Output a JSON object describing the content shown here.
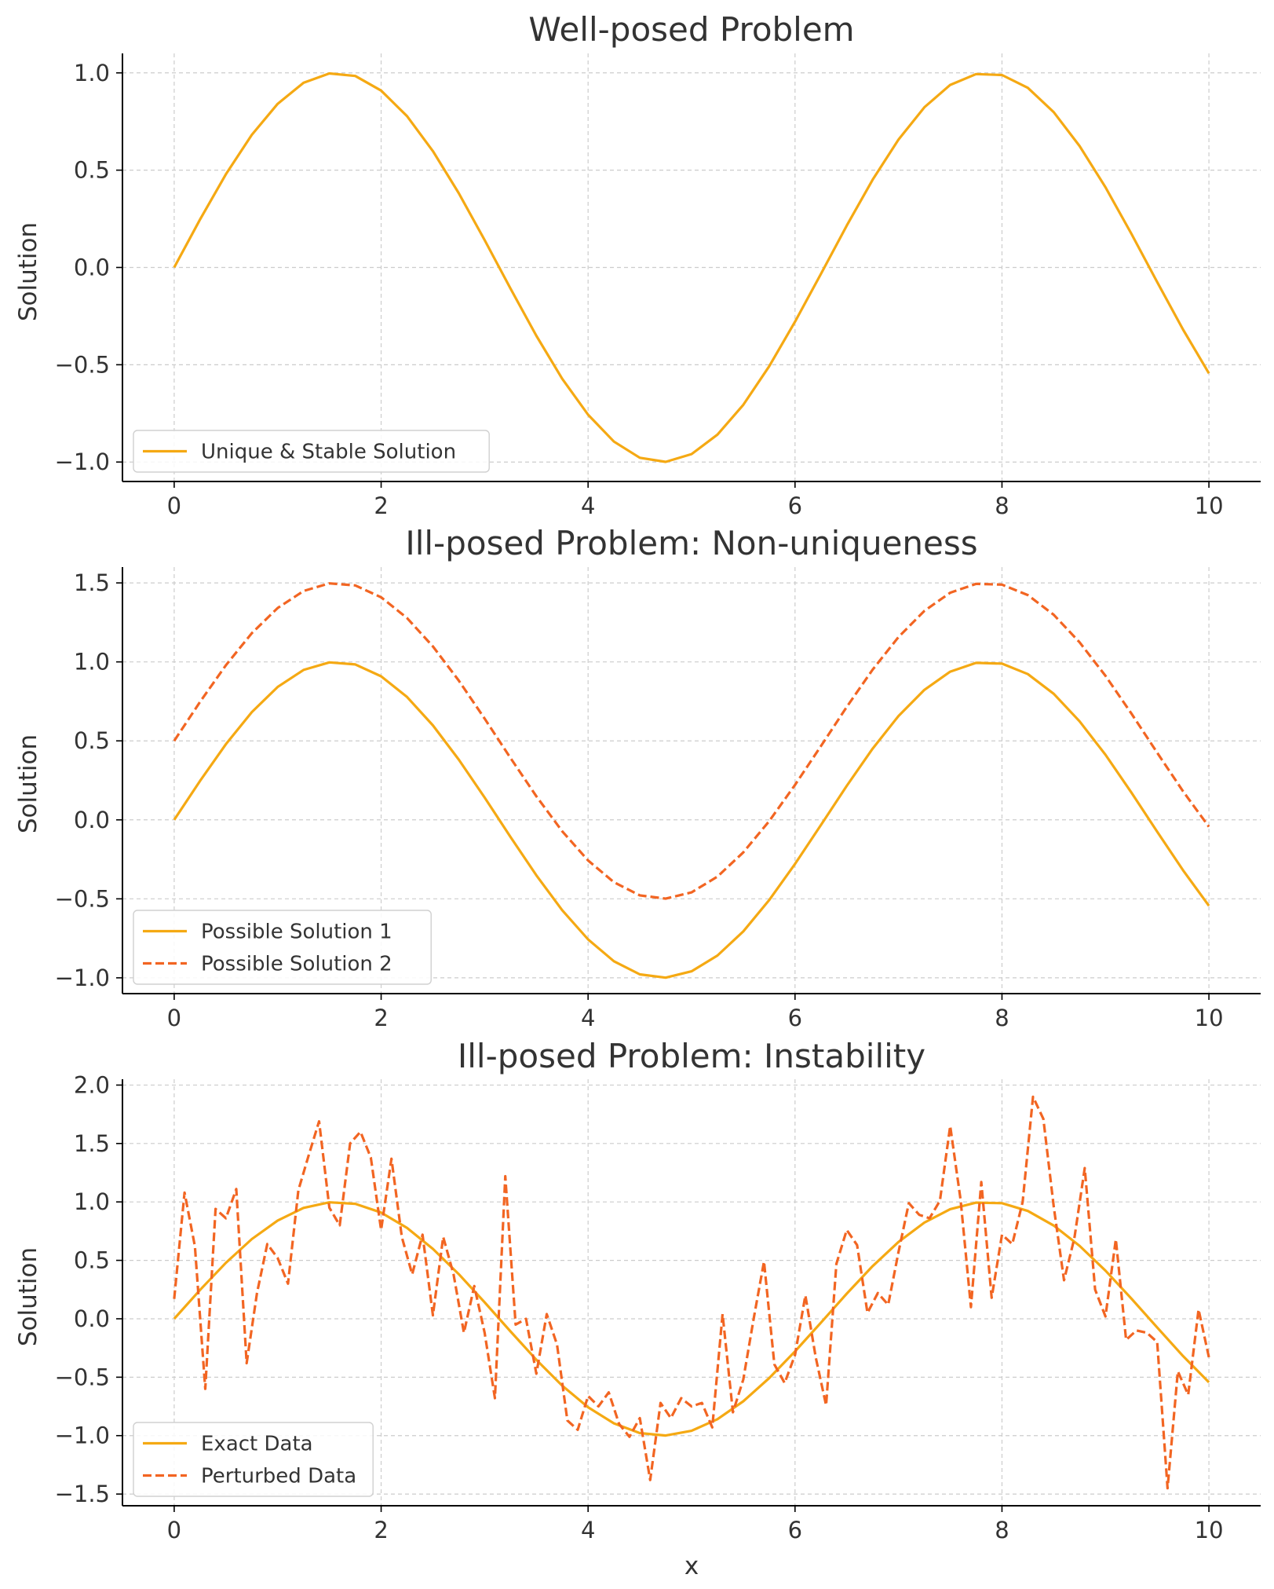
{
  "chart_data": [
    {
      "type": "line",
      "title": "Well-posed Problem",
      "xlabel": "",
      "ylabel": "Solution",
      "xlim": [
        -0.5,
        10.5
      ],
      "ylim": [
        -1.1,
        1.1
      ],
      "xticks": [
        0,
        2,
        4,
        6,
        8,
        10
      ],
      "xtick_labels": [
        "0",
        "2",
        "4",
        "6",
        "8",
        "10"
      ],
      "yticks": [
        1.0,
        0.5,
        0.0,
        -0.5,
        -1.0
      ],
      "ytick_labels": [
        "1.0",
        "0.5",
        "0.0",
        "−0.5",
        "−1.0"
      ],
      "grid": true,
      "legend_position": "lower-left",
      "series": [
        {
          "name": "Unique & Stable Solution",
          "color": "#f5a913",
          "style": "solid",
          "x": [
            0,
            0.25,
            0.5,
            0.75,
            1,
            1.25,
            1.5,
            1.75,
            2,
            2.25,
            2.5,
            2.75,
            3,
            3.25,
            3.5,
            3.75,
            4,
            4.25,
            4.5,
            4.75,
            5,
            5.25,
            5.5,
            5.75,
            6,
            6.25,
            6.5,
            6.75,
            7,
            7.25,
            7.5,
            7.75,
            8,
            8.25,
            8.5,
            8.75,
            9,
            9.25,
            9.5,
            9.75,
            10
          ],
          "y": [
            0,
            0.247,
            0.479,
            0.682,
            0.841,
            0.949,
            0.997,
            0.984,
            0.909,
            0.778,
            0.598,
            0.382,
            0.141,
            -0.108,
            -0.351,
            -0.572,
            -0.757,
            -0.895,
            -0.978,
            -0.999,
            -0.959,
            -0.859,
            -0.706,
            -0.508,
            -0.279,
            -0.033,
            0.215,
            0.451,
            0.657,
            0.823,
            0.938,
            0.994,
            0.989,
            0.923,
            0.798,
            0.624,
            0.412,
            0.174,
            -0.075,
            -0.319,
            -0.544
          ]
        }
      ]
    },
    {
      "type": "line",
      "title": "Ill-posed Problem: Non-uniqueness",
      "xlabel": "",
      "ylabel": "Solution",
      "xlim": [
        -0.5,
        10.5
      ],
      "ylim": [
        -1.1,
        1.6
      ],
      "xticks": [
        0,
        2,
        4,
        6,
        8,
        10
      ],
      "xtick_labels": [
        "0",
        "2",
        "4",
        "6",
        "8",
        "10"
      ],
      "yticks": [
        1.5,
        1.0,
        0.5,
        0.0,
        -0.5,
        -1.0
      ],
      "ytick_labels": [
        "1.5",
        "1.0",
        "0.5",
        "0.0",
        "−0.5",
        "−1.0"
      ],
      "grid": true,
      "legend_position": "lower-left",
      "series": [
        {
          "name": "Possible Solution 1",
          "color": "#f5a913",
          "style": "solid",
          "x": [
            0,
            0.25,
            0.5,
            0.75,
            1,
            1.25,
            1.5,
            1.75,
            2,
            2.25,
            2.5,
            2.75,
            3,
            3.25,
            3.5,
            3.75,
            4,
            4.25,
            4.5,
            4.75,
            5,
            5.25,
            5.5,
            5.75,
            6,
            6.25,
            6.5,
            6.75,
            7,
            7.25,
            7.5,
            7.75,
            8,
            8.25,
            8.5,
            8.75,
            9,
            9.25,
            9.5,
            9.75,
            10
          ],
          "y": [
            0,
            0.247,
            0.479,
            0.682,
            0.841,
            0.949,
            0.997,
            0.984,
            0.909,
            0.778,
            0.598,
            0.382,
            0.141,
            -0.108,
            -0.351,
            -0.572,
            -0.757,
            -0.895,
            -0.978,
            -0.999,
            -0.959,
            -0.859,
            -0.706,
            -0.508,
            -0.279,
            -0.033,
            0.215,
            0.451,
            0.657,
            0.823,
            0.938,
            0.994,
            0.989,
            0.923,
            0.798,
            0.624,
            0.412,
            0.174,
            -0.075,
            -0.319,
            -0.544
          ]
        },
        {
          "name": "Possible Solution 2",
          "color": "#f26522",
          "style": "dashed",
          "x": [
            0,
            0.25,
            0.5,
            0.75,
            1,
            1.25,
            1.5,
            1.75,
            2,
            2.25,
            2.5,
            2.75,
            3,
            3.25,
            3.5,
            3.75,
            4,
            4.25,
            4.5,
            4.75,
            5,
            5.25,
            5.5,
            5.75,
            6,
            6.25,
            6.5,
            6.75,
            7,
            7.25,
            7.5,
            7.75,
            8,
            8.25,
            8.5,
            8.75,
            9,
            9.25,
            9.5,
            9.75,
            10
          ],
          "y": [
            0.5,
            0.747,
            0.979,
            1.182,
            1.341,
            1.449,
            1.497,
            1.484,
            1.409,
            1.278,
            1.098,
            0.882,
            0.641,
            0.392,
            0.149,
            -0.072,
            -0.257,
            -0.395,
            -0.478,
            -0.499,
            -0.459,
            -0.359,
            -0.206,
            -0.008,
            0.221,
            0.467,
            0.715,
            0.951,
            1.157,
            1.323,
            1.438,
            1.494,
            1.489,
            1.423,
            1.298,
            1.124,
            0.912,
            0.674,
            0.425,
            0.181,
            -0.044
          ]
        }
      ]
    },
    {
      "type": "line",
      "title": "Ill-posed Problem: Instability",
      "xlabel": "x",
      "ylabel": "Solution",
      "xlim": [
        -0.5,
        10.5
      ],
      "ylim": [
        -1.6,
        2.05
      ],
      "xticks": [
        0,
        2,
        4,
        6,
        8,
        10
      ],
      "xtick_labels": [
        "0",
        "2",
        "4",
        "6",
        "8",
        "10"
      ],
      "yticks": [
        2.0,
        1.5,
        1.0,
        0.5,
        0.0,
        -0.5,
        -1.0,
        -1.5
      ],
      "ytick_labels": [
        "2.0",
        "1.5",
        "1.0",
        "0.5",
        "0.0",
        "−0.5",
        "−1.0",
        "−1.5"
      ],
      "grid": true,
      "legend_position": "lower-left",
      "series": [
        {
          "name": "Exact Data",
          "color": "#f5a913",
          "style": "solid",
          "x": [
            0,
            0.25,
            0.5,
            0.75,
            1,
            1.25,
            1.5,
            1.75,
            2,
            2.25,
            2.5,
            2.75,
            3,
            3.25,
            3.5,
            3.75,
            4,
            4.25,
            4.5,
            4.75,
            5,
            5.25,
            5.5,
            5.75,
            6,
            6.25,
            6.5,
            6.75,
            7,
            7.25,
            7.5,
            7.75,
            8,
            8.25,
            8.5,
            8.75,
            9,
            9.25,
            9.5,
            9.75,
            10
          ],
          "y": [
            0,
            0.247,
            0.479,
            0.682,
            0.841,
            0.949,
            0.997,
            0.984,
            0.909,
            0.778,
            0.598,
            0.382,
            0.141,
            -0.108,
            -0.351,
            -0.572,
            -0.757,
            -0.895,
            -0.978,
            -0.999,
            -0.959,
            -0.859,
            -0.706,
            -0.508,
            -0.279,
            -0.033,
            0.215,
            0.451,
            0.657,
            0.823,
            0.938,
            0.994,
            0.989,
            0.923,
            0.798,
            0.624,
            0.412,
            0.174,
            -0.075,
            -0.319,
            -0.544
          ]
        },
        {
          "name": "Perturbed Data",
          "color": "#f26522",
          "style": "dashed",
          "x": [
            0,
            0.1,
            0.2,
            0.3,
            0.4,
            0.5,
            0.6,
            0.7,
            0.8,
            0.9,
            1.0,
            1.1,
            1.2,
            1.3,
            1.4,
            1.5,
            1.6,
            1.7,
            1.8,
            1.9,
            2.0,
            2.1,
            2.2,
            2.3,
            2.4,
            2.5,
            2.6,
            2.7,
            2.8,
            2.9,
            3.0,
            3.1,
            3.2,
            3.3,
            3.4,
            3.5,
            3.6,
            3.7,
            3.8,
            3.9,
            4.0,
            4.1,
            4.2,
            4.3,
            4.4,
            4.5,
            4.6,
            4.7,
            4.8,
            4.9,
            5.0,
            5.1,
            5.2,
            5.3,
            5.4,
            5.5,
            5.6,
            5.7,
            5.8,
            5.9,
            6.0,
            6.1,
            6.2,
            6.3,
            6.4,
            6.5,
            6.6,
            6.7,
            6.8,
            6.9,
            7.0,
            7.1,
            7.2,
            7.3,
            7.4,
            7.5,
            7.6,
            7.7,
            7.8,
            7.9,
            8.0,
            8.1,
            8.2,
            8.3,
            8.4,
            8.5,
            8.6,
            8.7,
            8.8,
            8.9,
            9.0,
            9.1,
            9.2,
            9.3,
            9.4,
            9.5,
            9.6,
            9.7,
            9.8,
            9.9,
            10.0
          ],
          "y": [
            0.17,
            1.08,
            0.62,
            -0.6,
            0.94,
            0.86,
            1.11,
            -0.38,
            0.22,
            0.64,
            0.52,
            0.3,
            1.1,
            1.4,
            1.69,
            0.95,
            0.8,
            1.5,
            1.6,
            1.38,
            0.76,
            1.37,
            0.7,
            0.38,
            0.72,
            0.03,
            0.7,
            0.38,
            -0.12,
            0.28,
            -0.12,
            -0.68,
            1.22,
            -0.05,
            0.0,
            -0.47,
            0.04,
            -0.22,
            -0.87,
            -0.95,
            -0.66,
            -0.75,
            -0.63,
            -0.9,
            -1.01,
            -0.85,
            -1.38,
            -0.72,
            -0.85,
            -0.68,
            -0.75,
            -0.72,
            -0.93,
            0.04,
            -0.8,
            -0.52,
            0.0,
            0.49,
            -0.39,
            -0.55,
            -0.31,
            0.2,
            -0.33,
            -0.74,
            0.47,
            0.76,
            0.63,
            0.05,
            0.22,
            0.12,
            0.57,
            0.99,
            0.89,
            0.86,
            1.01,
            1.65,
            1.02,
            0.1,
            1.17,
            0.18,
            0.72,
            0.64,
            1.0,
            1.9,
            1.71,
            0.96,
            0.33,
            0.69,
            1.29,
            0.25,
            0.02,
            0.68,
            -0.18,
            -0.1,
            -0.12,
            -0.2,
            -1.45,
            -0.45,
            -0.65,
            0.08,
            -0.33
          ]
        }
      ]
    }
  ]
}
